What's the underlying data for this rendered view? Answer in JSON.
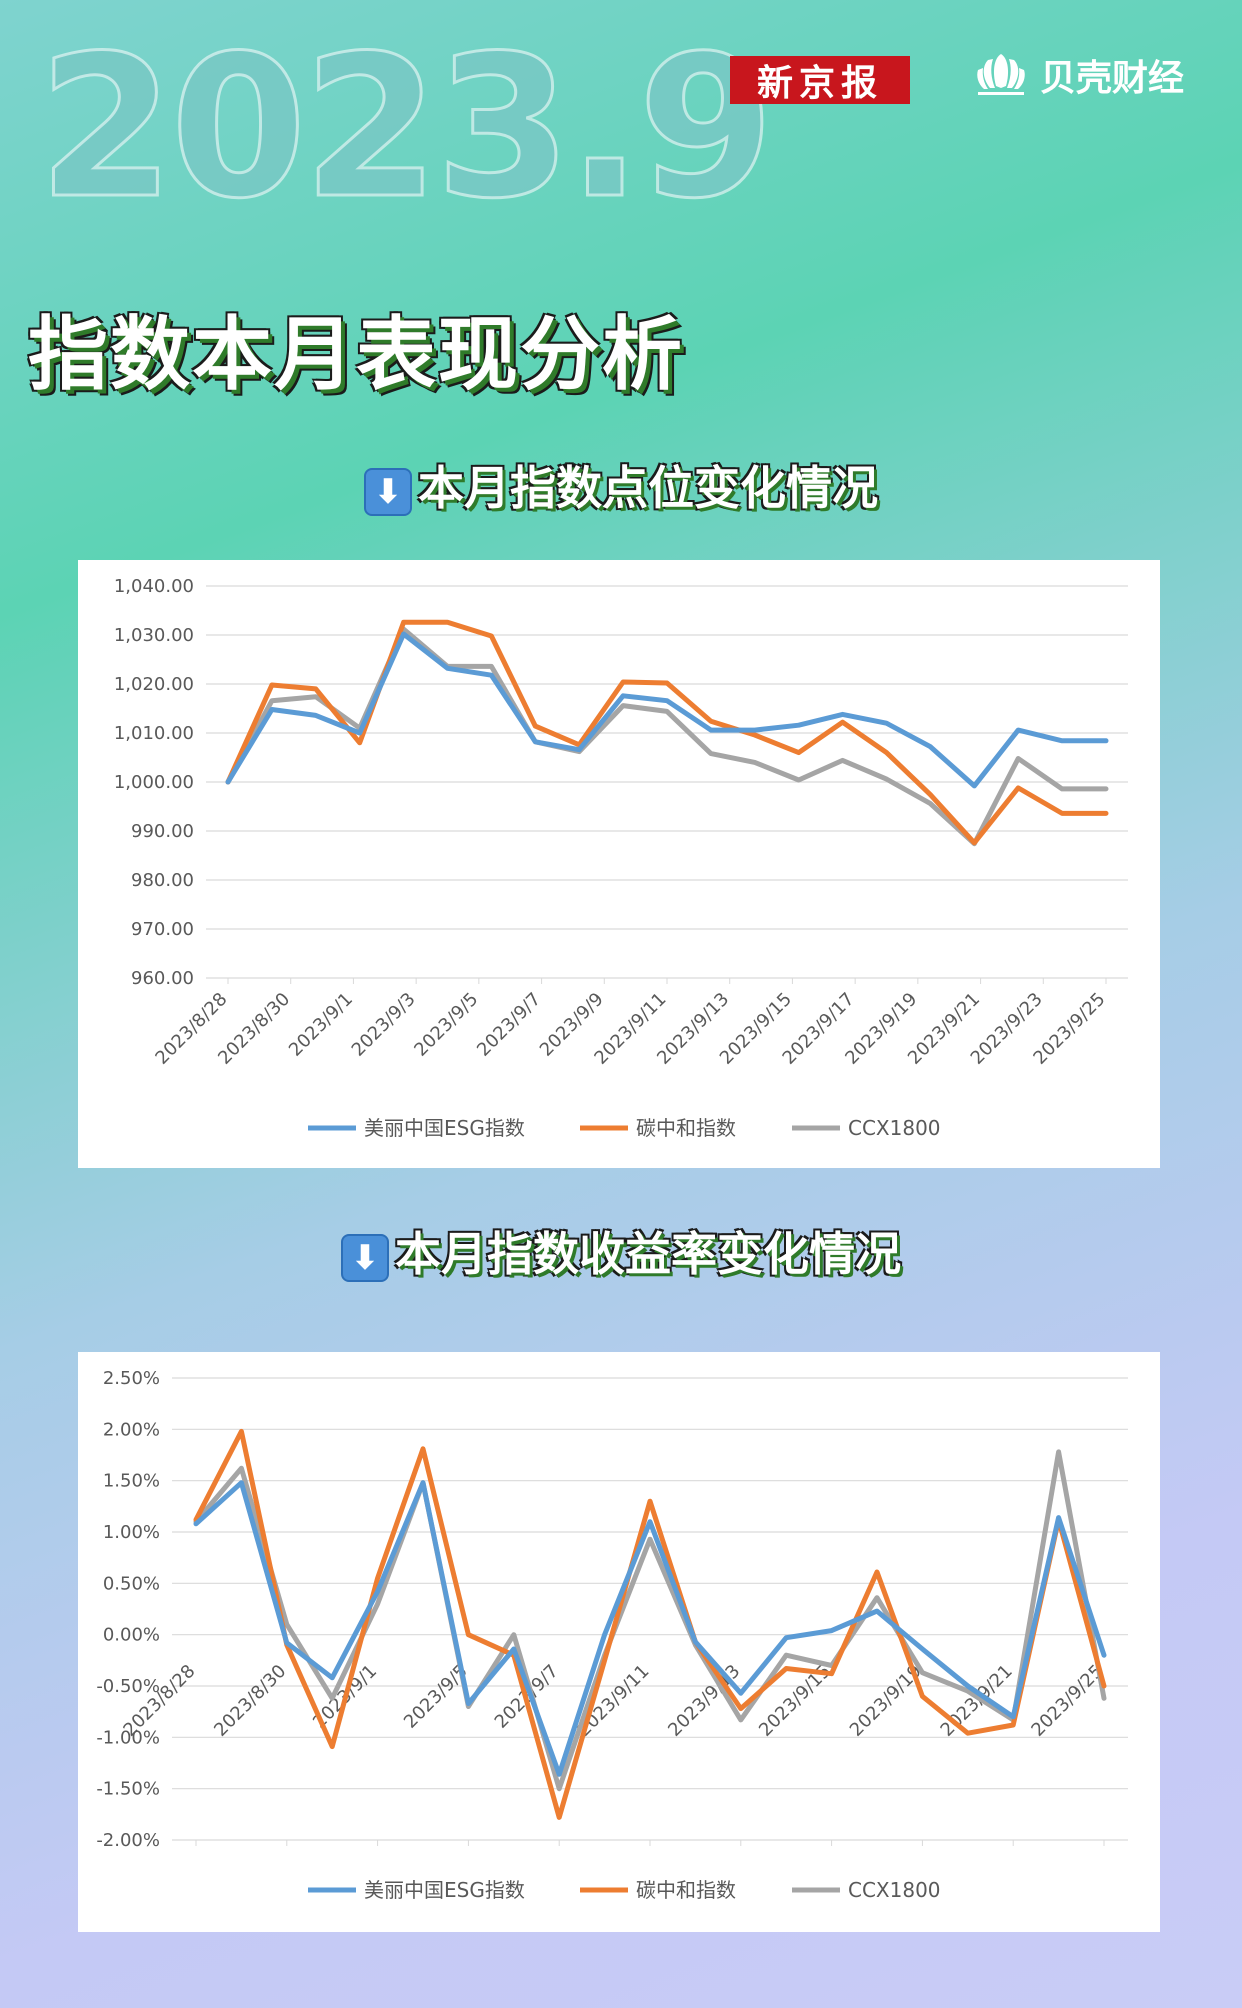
{
  "header": {
    "year_big": "2023.9",
    "logo_xjb": "新京报",
    "logo_bk": "贝壳财经",
    "title": "指数本月表现分析"
  },
  "section1": {
    "arrow": "⬇",
    "title": "本月指数点位变化情况"
  },
  "section2": {
    "arrow": "⬇",
    "title": "本月指数收益率变化情况"
  },
  "chart_data": [
    {
      "type": "line",
      "title": "",
      "ylim": [
        960,
        1040
      ],
      "yticks": [
        "960.00",
        "970.00",
        "980.00",
        "990.00",
        "1,000.00",
        "1,010.00",
        "1,020.00",
        "1,030.00",
        "1,040.00"
      ],
      "x": [
        "2023/8/28",
        "2023/8/29",
        "2023/8/30",
        "2023/8/31",
        "2023/9/1",
        "2023/9/4",
        "2023/9/5",
        "2023/9/6",
        "2023/9/7",
        "2023/9/8",
        "2023/9/11",
        "2023/9/12",
        "2023/9/13",
        "2023/9/14",
        "2023/9/15",
        "2023/9/18",
        "2023/9/19",
        "2023/9/20",
        "2023/9/21",
        "2023/9/22",
        "2023/9/25"
      ],
      "xtick_labels": [
        "2023/8/28",
        "2023/8/30",
        "2023/9/1",
        "2023/9/3",
        "2023/9/5",
        "2023/9/7",
        "2023/9/9",
        "2023/9/11",
        "2023/9/13",
        "2023/9/15",
        "2023/9/17",
        "2023/9/19",
        "2023/9/21",
        "2023/9/23",
        "2023/9/25"
      ],
      "series": [
        {
          "name": "美丽中国ESG指数",
          "color": "#5b9bd5",
          "values": [
            1000.0,
            1014.8,
            1013.6,
            1010.0,
            1030.2,
            1023.2,
            1021.8,
            1008.2,
            1006.6,
            1017.6,
            1016.6,
            1010.6,
            1010.6,
            1011.6,
            1013.8,
            1012.0,
            1007.2,
            999.2,
            1010.6,
            1008.4,
            1008.4
          ]
        },
        {
          "name": "碳中和指数",
          "color": "#ed7d31",
          "values": [
            1000.0,
            1019.8,
            1019.0,
            1008.0,
            1032.6,
            1032.6,
            1029.8,
            1011.4,
            1007.6,
            1020.4,
            1020.2,
            1012.4,
            1009.6,
            1006.0,
            1012.2,
            1006.0,
            997.4,
            987.6,
            998.8,
            993.6,
            993.6
          ]
        },
        {
          "name": "CCX1800",
          "color": "#a5a5a5",
          "values": [
            1000.0,
            1016.6,
            1017.4,
            1011.0,
            1031.2,
            1023.6,
            1023.6,
            1008.2,
            1006.2,
            1015.6,
            1014.4,
            1005.8,
            1004.0,
            1000.4,
            1004.4,
            1000.6,
            995.6,
            987.4,
            1004.8,
            998.6,
            998.6
          ]
        }
      ],
      "legend": "bottom"
    },
    {
      "type": "line",
      "title": "",
      "ylim": [
        -2.0,
        2.5
      ],
      "yticks": [
        "-2.00%",
        "-1.50%",
        "-1.00%",
        "-0.50%",
        "0.00%",
        "0.50%",
        "1.00%",
        "1.50%",
        "2.00%",
        "2.50%"
      ],
      "x": [
        "2023/8/28",
        "2023/8/29",
        "2023/8/30",
        "2023/8/31",
        "2023/9/1",
        "2023/9/4",
        "2023/9/5",
        "2023/9/6",
        "2023/9/7",
        "2023/9/8",
        "2023/9/11",
        "2023/9/12",
        "2023/9/13",
        "2023/9/14",
        "2023/9/15",
        "2023/9/18",
        "2023/9/19",
        "2023/9/20",
        "2023/9/21",
        "2023/9/22",
        "2023/9/25"
      ],
      "xtick_labels": [
        "2023/8/28",
        "2023/8/30",
        "2023/9/1",
        "2023/9/5",
        "2023/9/7",
        "2023/9/11",
        "2023/9/13",
        "2023/9/15",
        "2023/9/19",
        "2023/9/21",
        "2023/9/25"
      ],
      "series": [
        {
          "name": "美丽中国ESG指数",
          "color": "#5b9bd5",
          "values": [
            1.08,
            1.48,
            -0.08,
            -0.42,
            0.42,
            1.48,
            -0.67,
            -0.14,
            -1.36,
            0.0,
            1.1,
            -0.07,
            -0.57,
            -0.03,
            0.04,
            0.23,
            -0.14,
            -0.5,
            -0.8,
            1.14,
            -0.2
          ]
        },
        {
          "name": "碳中和指数",
          "color": "#ed7d31",
          "values": [
            1.12,
            1.98,
            -0.1,
            -1.09,
            0.55,
            1.81,
            0.0,
            -0.2,
            -1.78,
            -0.25,
            1.3,
            -0.07,
            -0.72,
            -0.33,
            -0.38,
            0.61,
            -0.6,
            -0.96,
            -0.88,
            1.12,
            -0.5
          ]
        },
        {
          "name": "CCX1800",
          "color": "#a5a5a5",
          "values": [
            1.1,
            1.62,
            0.1,
            -0.62,
            0.3,
            1.48,
            -0.7,
            0.0,
            -1.5,
            -0.2,
            0.93,
            -0.1,
            -0.83,
            -0.2,
            -0.3,
            0.36,
            -0.37,
            -0.55,
            -0.83,
            1.78,
            -0.62
          ]
        }
      ],
      "legend": "bottom"
    }
  ]
}
